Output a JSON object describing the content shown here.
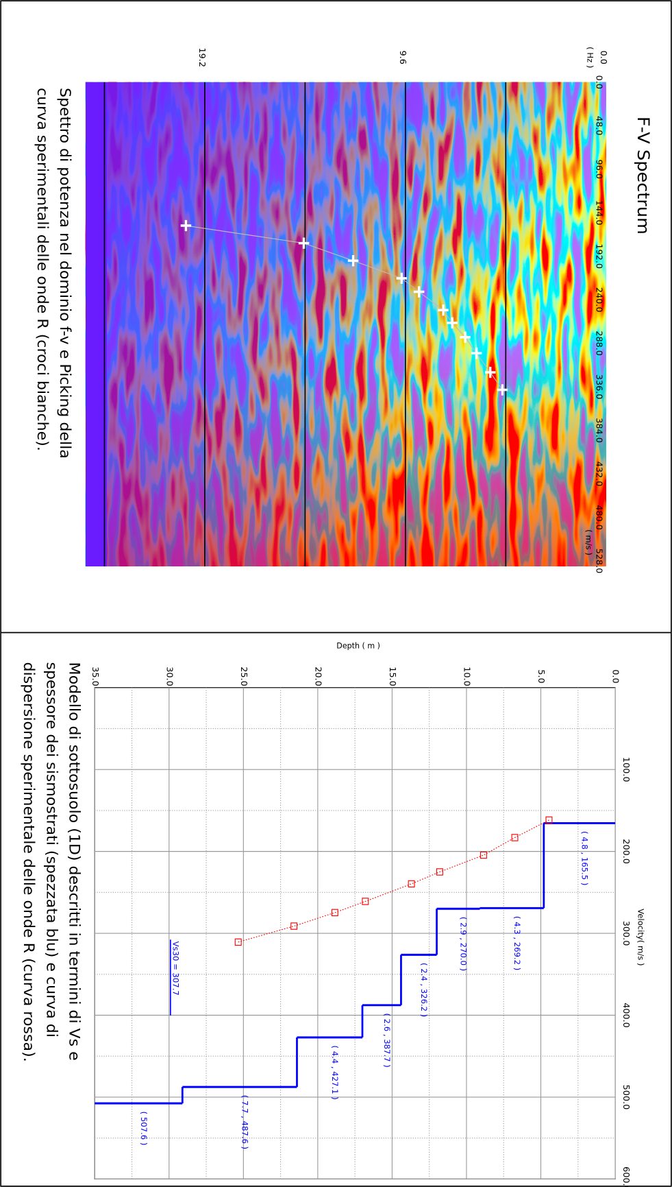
{
  "chart_data": [
    {
      "type": "spectrum",
      "title": "F-V Spectrum",
      "x_label": "( m/s )",
      "y_label": "( Hz )",
      "caption": [
        "Spettro di potenza nel dominio f-v e Picking della",
        "curva sperimentali delle onde R (croci bianche)."
      ],
      "xlim": [
        0,
        534
      ],
      "xticks": [
        {
          "value": 0,
          "label": "0.0"
        },
        {
          "value": 48,
          "label": "48.0"
        },
        {
          "value": 96,
          "label": "96.0"
        },
        {
          "value": 144,
          "label": "144.0"
        },
        {
          "value": 192,
          "label": "192.0"
        },
        {
          "value": 240,
          "label": "240.0"
        },
        {
          "value": 288,
          "label": "288.0"
        },
        {
          "value": 336,
          "label": "336.0"
        },
        {
          "value": 384,
          "label": "384.0"
        },
        {
          "value": 432,
          "label": "432.0"
        },
        {
          "value": 480,
          "label": "480.0"
        },
        {
          "value": 528,
          "label": "528.0"
        }
      ],
      "ylim": [
        0,
        24.9
      ],
      "yticks": [
        {
          "value": 0,
          "label": "0.0"
        },
        9.6,
        19.2
      ],
      "grid_lines": [
        4.8,
        9.6,
        14.4,
        19.2,
        24
      ],
      "color": "#ffffff",
      "x": [
        158.2,
        177.6,
        196.9,
        216.3,
        231.2,
        251.4,
        265.5,
        281.3,
        298.9,
        320.0,
        339.3
      ],
      "values": [
        20.1,
        14.46,
        12.1,
        9.78,
        8.95,
        7.79,
        7.36,
        6.74,
        6.2,
        5.54,
        4.96
      ]
    },
    {
      "type": "profile",
      "x_label": "Velocity( m/s )",
      "y_label": "Depth ( m )",
      "caption": [
        "Modello di sottosuolo (1D) descritti in termini di Vs e",
        "spessore dei sismostrati (spezzata blu) e curva di",
        "dispersione sperimentale delle onde R (curva rossa)."
      ],
      "xlim": [
        0,
        600
      ],
      "xticks": [
        {
          "value": 100,
          "label": "100.0"
        },
        {
          "value": 200,
          "label": "200.0"
        },
        {
          "value": 300,
          "label": "300.0"
        },
        {
          "value": 400,
          "label": "400.0"
        },
        {
          "value": 500,
          "label": "500.0"
        },
        {
          "value": 600,
          "label": "600.0"
        }
      ],
      "ylim": [
        0,
        35
      ],
      "yticks": [
        {
          "value": 0,
          "label": "0.0"
        },
        {
          "value": 5,
          "label": "5.0"
        },
        {
          "value": 10,
          "label": "10.0"
        },
        {
          "value": 15,
          "label": "15.0"
        },
        {
          "value": 20,
          "label": "20.0"
        },
        {
          "value": 25,
          "label": "25.0"
        },
        {
          "value": 30,
          "label": "30.0"
        },
        {
          "value": 35,
          "label": "35.0"
        }
      ],
      "model_color": "#0000ff",
      "layers": [
        {
          "thickness": 4.8,
          "vs": 165.5,
          "label": "( 4.8 , 165.5 )"
        },
        {
          "thickness": 4.3,
          "vs": 269.2,
          "label": "( 4.3 , 269.2 )"
        },
        {
          "thickness": 2.9,
          "vs": 270.0,
          "label": "( 2.9 , 270.0 )"
        },
        {
          "thickness": 2.4,
          "vs": 326.2,
          "label": "( 2.4 , 326.2 )"
        },
        {
          "thickness": 2.6,
          "vs": 387.7,
          "label": "( 2.6 , 387.7 )"
        },
        {
          "thickness": 4.4,
          "vs": 427.1,
          "label": "( 4.4 , 427.1 )"
        },
        {
          "thickness": 7.7,
          "vs": 487.6,
          "label": "( 7.7 , 487.6 )"
        },
        {
          "vs": 507.6,
          "label": "( 507.6 )"
        }
      ],
      "vs30": {
        "value": 307.7,
        "label": "Vs30 = 307.7"
      },
      "series": [
        {
          "color": "#ff0000",
          "x": [
            161.7,
            183.1,
            204.5,
            225.0,
            239.6,
            261.0,
            274.7,
            291.2,
            310.7
          ],
          "values": [
            4.45,
            6.75,
            8.85,
            11.8,
            13.7,
            16.8,
            18.85,
            21.6,
            25.35
          ]
        }
      ]
    }
  ]
}
